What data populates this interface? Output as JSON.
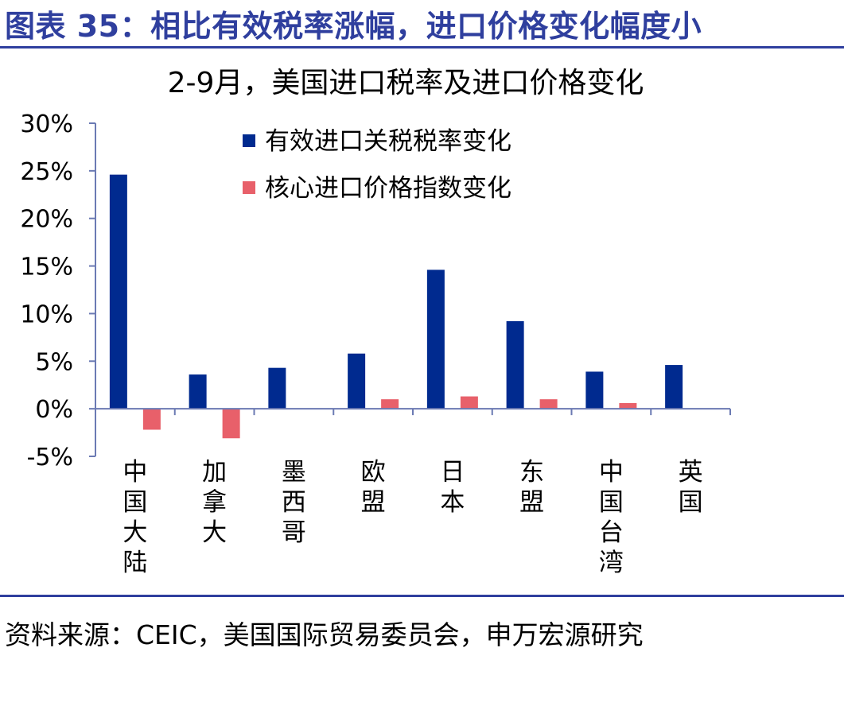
{
  "header": {
    "figure_title": "图表 35：相比有效税率涨幅，进口价格变化幅度小"
  },
  "colors": {
    "accent": "#2f3f9e",
    "series_tariff": "#002a8f",
    "series_price": "#e8606a",
    "axis": "#6b7ab3",
    "text": "#000000"
  },
  "chart_data": {
    "type": "bar",
    "title": "2-9月，美国进口税率及进口价格变化",
    "xlabel": "",
    "ylabel": "",
    "categories": [
      "中国大陆",
      "加拿大",
      "墨西哥",
      "欧盟",
      "日本",
      "东盟",
      "中国台湾",
      "英国"
    ],
    "series": [
      {
        "name": "有效进口关税税率变化",
        "color": "#002a8f",
        "values": [
          24.6,
          3.6,
          4.3,
          5.8,
          14.6,
          9.2,
          3.9,
          4.6
        ]
      },
      {
        "name": "核心进口价格指数变化",
        "color": "#e8606a",
        "values": [
          -2.2,
          -3.1,
          null,
          1.0,
          1.3,
          1.0,
          0.6,
          null
        ]
      }
    ],
    "ylim": [
      -5,
      30
    ],
    "yticks": [
      -5,
      0,
      5,
      10,
      15,
      20,
      25,
      30
    ],
    "ytick_labels": [
      "-5%",
      "0%",
      "5%",
      "10%",
      "15%",
      "20%",
      "25%",
      "30%"
    ],
    "grid": false,
    "legend_position": "top-center"
  },
  "footer": {
    "source": "资料来源：CEIC，美国国际贸易委员会，申万宏源研究"
  }
}
